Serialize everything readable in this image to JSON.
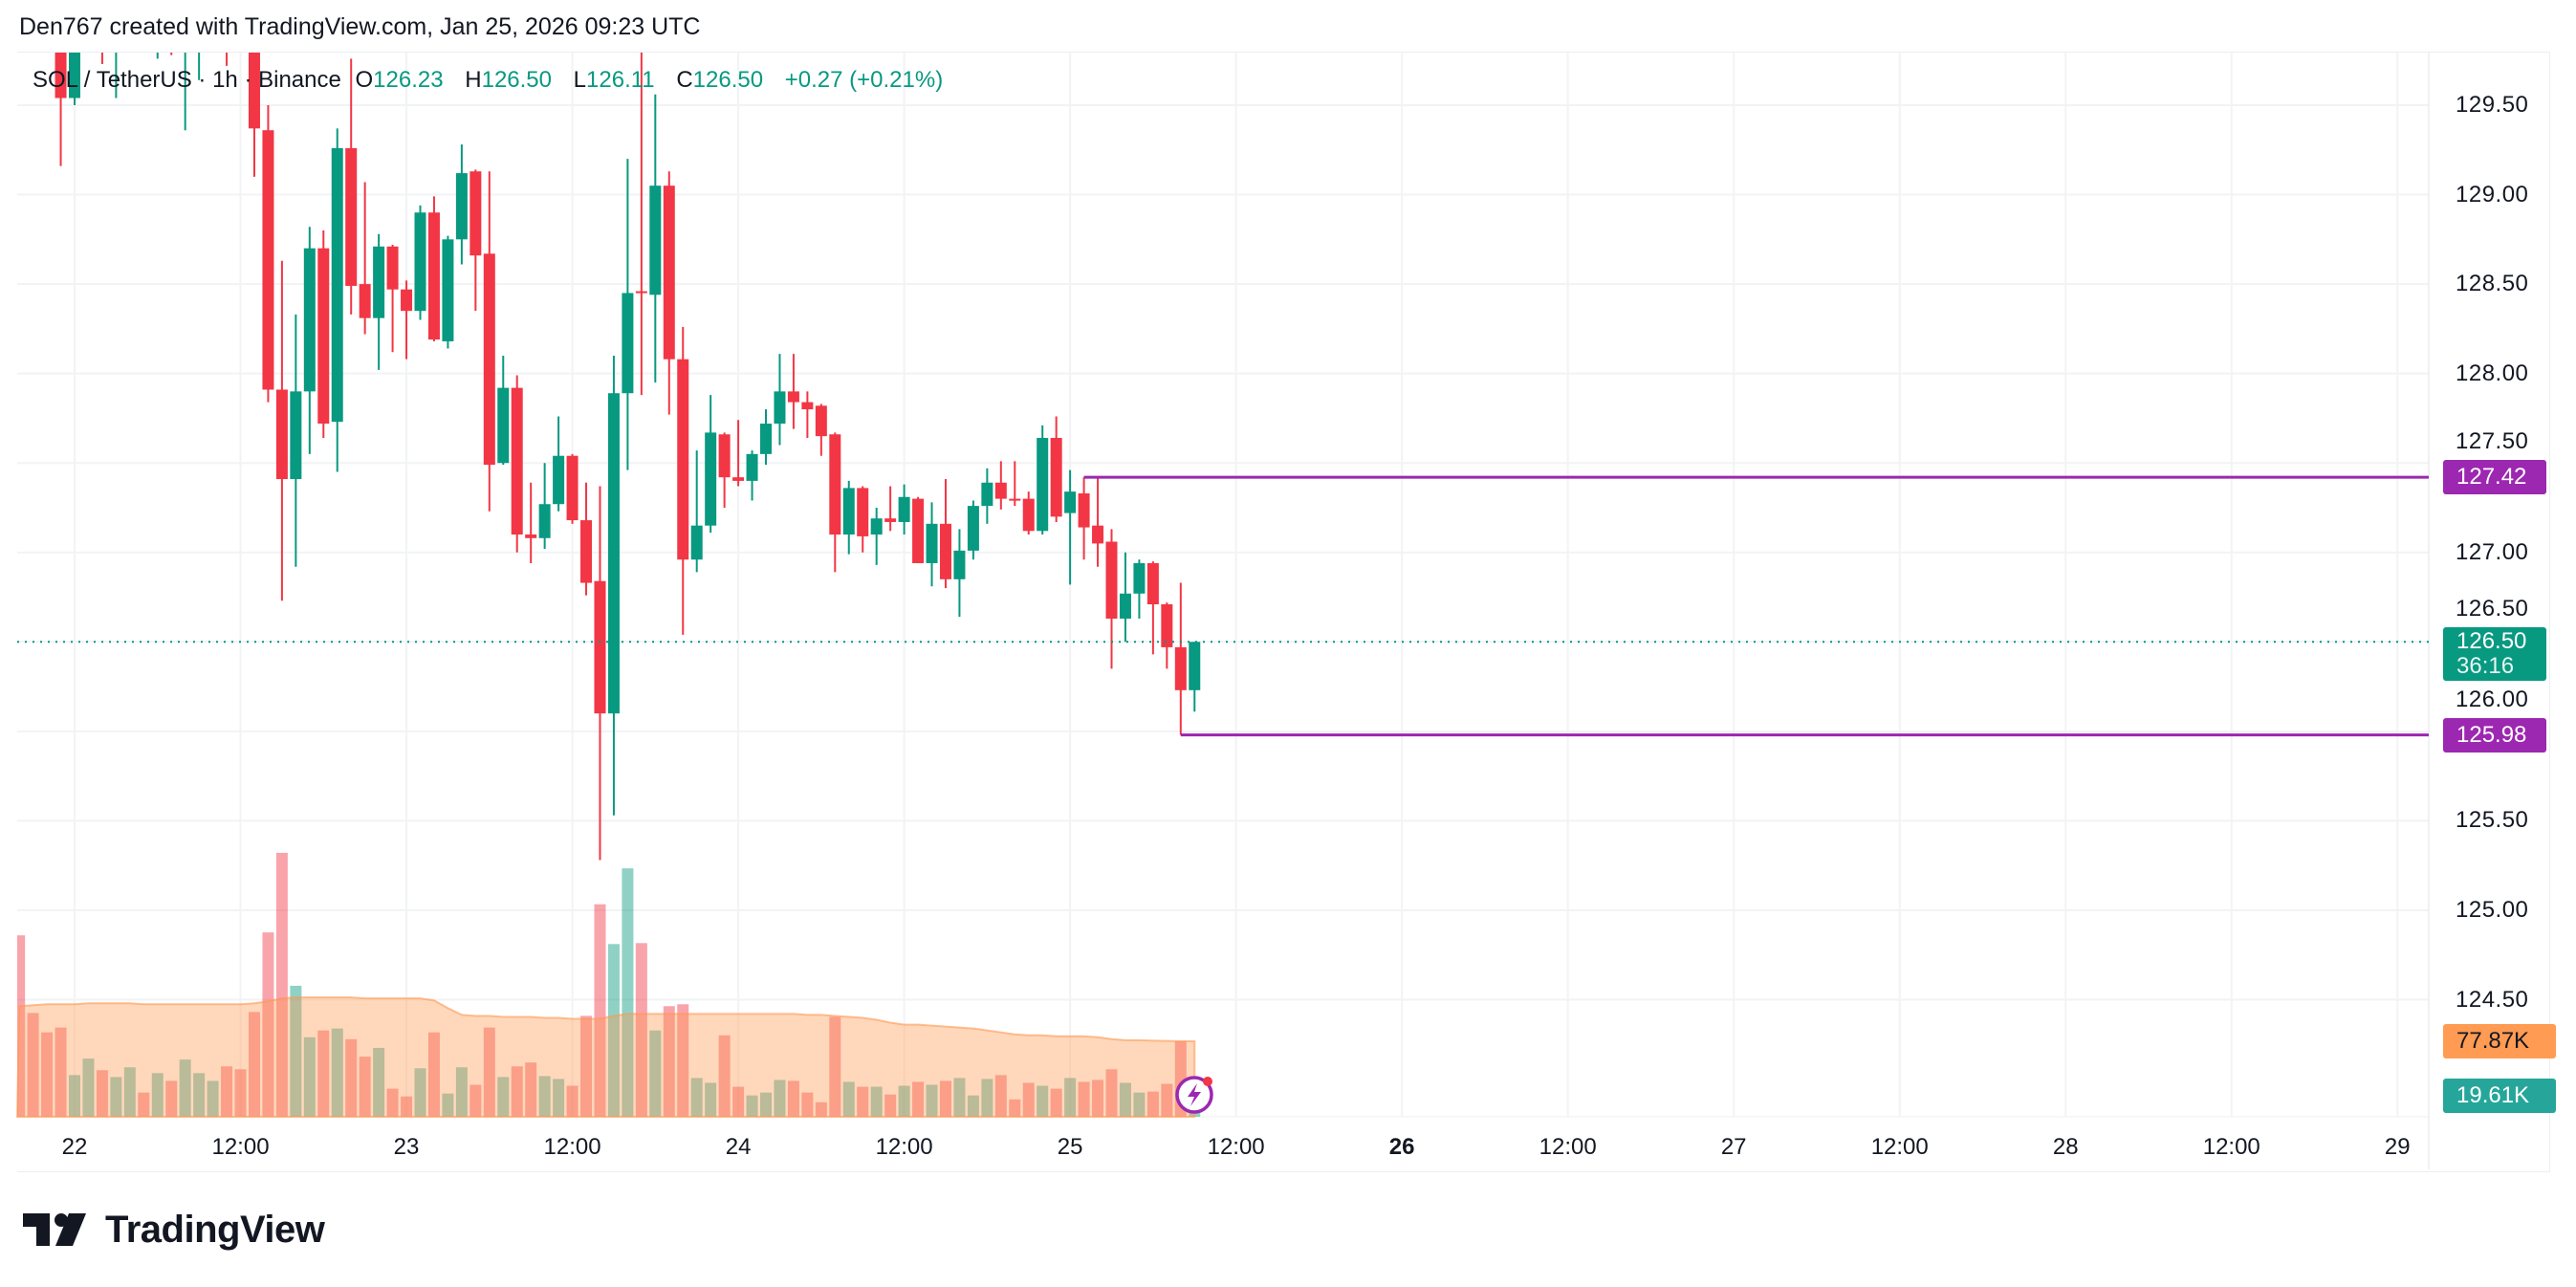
{
  "credit": "Den767 created with TradingView.com, Jan 25, 2026 09:23 UTC",
  "legend": {
    "symbol": "SOL / TetherUS · 1h · Binance",
    "o_label": "O",
    "o": "126.23",
    "h_label": "H",
    "h": "126.50",
    "l_label": "L",
    "l": "126.11",
    "c_label": "C",
    "c": "126.50",
    "change": "+0.27 (+0.21%)"
  },
  "price_axis": [
    "129.50",
    "129.00",
    "128.50",
    "128.00",
    "127.50",
    "127.00",
    "126.50",
    "126.00",
    "125.50",
    "125.00",
    "124.50"
  ],
  "time_axis": [
    {
      "label": "22",
      "h": 0
    },
    {
      "label": "12:00",
      "h": 12
    },
    {
      "label": "23",
      "h": 24
    },
    {
      "label": "12:00",
      "h": 36
    },
    {
      "label": "24",
      "h": 48
    },
    {
      "label": "12:00",
      "h": 60
    },
    {
      "label": "25",
      "h": 72
    },
    {
      "label": "12:00",
      "h": 84
    },
    {
      "label": "26",
      "h": 96,
      "bold": true
    },
    {
      "label": "12:00",
      "h": 108
    },
    {
      "label": "27",
      "h": 120
    },
    {
      "label": "12:00",
      "h": 132
    },
    {
      "label": "28",
      "h": 144
    },
    {
      "label": "12:00",
      "h": 156
    },
    {
      "label": "29",
      "h": 168
    }
  ],
  "tags": {
    "resistance": "127.42",
    "last_price": "126.50",
    "countdown": "36:16",
    "support": "125.98",
    "volume_ma": "77.87K",
    "volume": "19.61K"
  },
  "colors": {
    "up": "#089981",
    "down": "#f23645",
    "level": "#9c27b0",
    "volume_ma": "#ff9850",
    "tag_vol_ma": "#ff9b52",
    "tag_vol": "#26a69a"
  },
  "logo": "TradingView",
  "icons": {
    "bolt": "lightning-bolt-icon",
    "logo": "tradingview-logo-icon"
  },
  "chart_data": {
    "type": "candlestick",
    "symbol": "SOL / TetherUS",
    "interval": "1h",
    "start": "2026-01-21T23:00",
    "ohlc": [
      [
        129.95,
        130.2,
        129.16,
        129.54
      ],
      [
        129.54,
        130.1,
        129.5,
        129.9
      ],
      [
        129.9,
        130.3,
        129.88,
        130.1
      ],
      [
        130.1,
        130.3,
        129.73,
        129.95
      ],
      [
        129.95,
        130.4,
        129.54,
        130.2
      ],
      [
        130.2,
        130.5,
        130.0,
        130.35
      ],
      [
        130.35,
        130.5,
        129.95,
        130.1
      ],
      [
        130.1,
        130.4,
        129.76,
        130.25
      ],
      [
        130.25,
        130.4,
        129.78,
        130.0
      ],
      [
        130.0,
        130.3,
        129.36,
        130.15
      ],
      [
        130.15,
        130.4,
        129.64,
        130.3
      ],
      [
        130.3,
        130.5,
        130.0,
        130.4
      ],
      [
        130.4,
        130.5,
        129.72,
        130.1
      ],
      [
        130.1,
        130.3,
        129.85,
        129.95
      ],
      [
        129.95,
        130.1,
        129.1,
        129.37
      ],
      [
        129.36,
        129.5,
        127.84,
        127.91
      ],
      [
        127.91,
        128.63,
        126.73,
        127.41
      ],
      [
        127.41,
        128.33,
        126.92,
        127.9
      ],
      [
        127.9,
        128.82,
        127.55,
        128.7
      ],
      [
        128.7,
        128.8,
        127.64,
        127.72
      ],
      [
        127.73,
        129.37,
        127.45,
        129.26
      ],
      [
        129.26,
        129.76,
        128.33,
        128.49
      ],
      [
        128.5,
        129.07,
        128.22,
        128.31
      ],
      [
        128.31,
        128.78,
        128.02,
        128.71
      ],
      [
        128.71,
        128.72,
        128.12,
        128.47
      ],
      [
        128.47,
        128.52,
        128.08,
        128.35
      ],
      [
        128.35,
        128.94,
        128.3,
        128.9
      ],
      [
        128.9,
        128.99,
        128.18,
        128.19
      ],
      [
        128.18,
        128.77,
        128.14,
        128.75
      ],
      [
        128.75,
        129.28,
        128.61,
        129.12
      ],
      [
        129.13,
        129.14,
        128.35,
        128.66
      ],
      [
        128.67,
        129.13,
        127.23,
        127.49
      ],
      [
        127.5,
        128.1,
        127.49,
        127.92
      ],
      [
        127.92,
        127.99,
        127.0,
        127.1
      ],
      [
        127.1,
        127.39,
        126.94,
        127.08
      ],
      [
        127.08,
        127.5,
        127.02,
        127.27
      ],
      [
        127.27,
        127.76,
        127.23,
        127.54
      ],
      [
        127.54,
        127.55,
        127.16,
        127.18
      ],
      [
        127.18,
        127.39,
        126.76,
        126.83
      ],
      [
        126.84,
        127.37,
        125.28,
        126.1
      ],
      [
        126.1,
        128.1,
        125.53,
        127.89
      ],
      [
        127.89,
        129.2,
        127.46,
        128.45
      ],
      [
        128.46,
        129.8,
        127.88,
        128.45
      ],
      [
        128.44,
        129.56,
        127.95,
        129.05
      ],
      [
        129.05,
        129.13,
        127.77,
        128.08
      ],
      [
        128.08,
        128.26,
        126.54,
        126.96
      ],
      [
        126.96,
        127.57,
        126.89,
        127.15
      ],
      [
        127.15,
        127.88,
        127.11,
        127.67
      ],
      [
        127.66,
        127.67,
        127.25,
        127.42
      ],
      [
        127.42,
        127.74,
        127.37,
        127.4
      ],
      [
        127.4,
        127.57,
        127.29,
        127.55
      ],
      [
        127.55,
        127.8,
        127.49,
        127.72
      ],
      [
        127.72,
        128.11,
        127.6,
        127.9
      ],
      [
        127.9,
        128.11,
        127.69,
        127.84
      ],
      [
        127.84,
        127.9,
        127.64,
        127.8
      ],
      [
        127.82,
        127.83,
        127.54,
        127.65
      ],
      [
        127.66,
        127.67,
        126.89,
        127.1
      ],
      [
        127.1,
        127.4,
        126.99,
        127.36
      ],
      [
        127.36,
        127.37,
        127.0,
        127.09
      ],
      [
        127.1,
        127.25,
        126.93,
        127.19
      ],
      [
        127.19,
        127.37,
        127.12,
        127.17
      ],
      [
        127.17,
        127.38,
        127.1,
        127.31
      ],
      [
        127.3,
        127.31,
        126.94,
        126.94
      ],
      [
        126.94,
        127.28,
        126.81,
        127.16
      ],
      [
        127.16,
        127.41,
        126.8,
        126.85
      ],
      [
        126.85,
        127.13,
        126.64,
        127.01
      ],
      [
        127.01,
        127.29,
        126.96,
        127.26
      ],
      [
        127.26,
        127.47,
        127.16,
        127.39
      ],
      [
        127.39,
        127.51,
        127.24,
        127.3
      ],
      [
        127.3,
        127.51,
        127.26,
        127.29
      ],
      [
        127.3,
        127.34,
        127.1,
        127.12
      ],
      [
        127.12,
        127.71,
        127.1,
        127.64
      ],
      [
        127.64,
        127.76,
        127.17,
        127.2
      ],
      [
        127.22,
        127.46,
        126.82,
        127.34
      ],
      [
        127.33,
        127.42,
        126.96,
        127.14
      ],
      [
        127.15,
        127.42,
        126.92,
        127.05
      ],
      [
        127.06,
        127.13,
        126.35,
        126.63
      ],
      [
        126.63,
        127.0,
        126.5,
        126.77
      ],
      [
        126.77,
        126.96,
        126.63,
        126.94
      ],
      [
        126.94,
        126.95,
        126.43,
        126.71
      ],
      [
        126.71,
        126.72,
        126.35,
        126.47
      ],
      [
        126.47,
        126.83,
        125.98,
        126.23
      ],
      [
        126.23,
        126.5,
        126.11,
        126.5
      ]
    ],
    "volume_start": "2026-01-21T20:00",
    "volume_k": [
      187,
      107,
      87,
      92,
      43,
      60,
      48,
      41,
      51,
      25,
      45,
      37,
      59,
      45,
      37,
      52,
      49,
      108,
      190,
      272,
      135,
      82,
      89,
      91,
      80,
      62,
      71,
      29,
      21,
      50,
      87,
      24,
      51,
      33,
      92,
      41,
      52,
      56,
      42,
      39,
      32,
      104,
      219,
      178,
      256,
      179,
      89,
      114,
      116,
      40,
      35,
      84,
      31,
      22,
      25,
      38,
      37,
      25,
      15,
      103,
      36,
      31,
      31,
      23,
      32,
      36,
      33,
      37,
      40,
      22,
      39,
      43,
      18,
      35,
      32,
      29,
      40,
      36,
      38,
      49,
      35,
      25,
      26,
      34,
      78,
      19.61
    ],
    "volume_ma_k": [
      114,
      115,
      116,
      116,
      116,
      117,
      117,
      117,
      117,
      116,
      116,
      116,
      116,
      116,
      116,
      116,
      116,
      117,
      119,
      122,
      123,
      123,
      123,
      123,
      123,
      122,
      122,
      122,
      122,
      122,
      120,
      112,
      105,
      104,
      104,
      103,
      103,
      103,
      102,
      102,
      101,
      101,
      101,
      104,
      106,
      106,
      106,
      106,
      106,
      106,
      106,
      106,
      106,
      106,
      106,
      106,
      106,
      105,
      105,
      104,
      103,
      102,
      100,
      97,
      95,
      95,
      94,
      93,
      92,
      91,
      89,
      87,
      85,
      84,
      84,
      83,
      83,
      83,
      82,
      80,
      79,
      79,
      78.5,
      78.2,
      78,
      77.87
    ],
    "volume_dir_first": [
      "d",
      "d",
      "d"
    ],
    "levels": [
      {
        "price": 127.42,
        "from": "2026-01-25T01:00"
      },
      {
        "price": 125.98,
        "from": "2026-01-25T08:00"
      }
    ],
    "last_price": 126.5,
    "y_range": [
      124.3,
      129.8
    ],
    "grid": true
  }
}
